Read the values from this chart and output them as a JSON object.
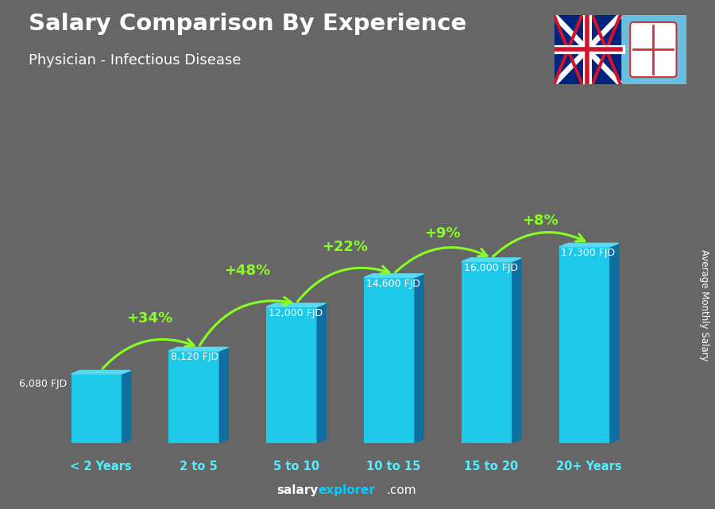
{
  "title": "Salary Comparison By Experience",
  "subtitle": "Physician - Infectious Disease",
  "categories": [
    "< 2 Years",
    "2 to 5",
    "5 to 10",
    "10 to 15",
    "15 to 20",
    "20+ Years"
  ],
  "values": [
    6080,
    8120,
    12000,
    14600,
    16000,
    17300
  ],
  "value_labels": [
    "6,080 FJD",
    "8,120 FJD",
    "12,000 FJD",
    "14,600 FJD",
    "16,000 FJD",
    "17,300 FJD"
  ],
  "pct_labels": [
    "+34%",
    "+48%",
    "+22%",
    "+9%",
    "+8%"
  ],
  "bar_color_face": "#1EC8E8",
  "bar_color_side": "#0E6FA0",
  "bar_color_top": "#5ADAF0",
  "bg_color": "#666666",
  "title_color": "#ffffff",
  "subtitle_color": "#ffffff",
  "xlabel_color": "#55EEFF",
  "pct_color": "#88FF22",
  "ylabel": "Average Monthly Salary",
  "footer_salary": "salary",
  "footer_explorer": "explorer",
  "footer_com": ".com"
}
